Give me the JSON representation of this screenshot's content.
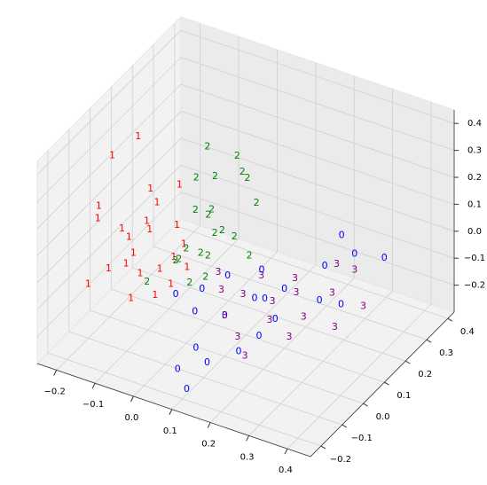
{
  "chart_data": {
    "type": "scatter",
    "series": [
      {
        "name": "0",
        "color": "#0000ff",
        "x": [
          0.1,
          0.15,
          0.05,
          0.2,
          0.25,
          0.3,
          0.35,
          0.08,
          0.12,
          0.18,
          0.03,
          0.13,
          0.22,
          0.06,
          0.1,
          0.16,
          0.28,
          0,
          0.2,
          0.32,
          0.08,
          0.25
        ],
        "y": [
          0,
          0.05,
          -0.05,
          0.1,
          0.2,
          0.25,
          0.3,
          -0.1,
          -0.12,
          -0.08,
          0.02,
          0.12,
          0.02,
          -0.15,
          -0.18,
          0.08,
          0.12,
          -0.05,
          -0.02,
          0.15,
          0.05,
          0.28
        ],
        "z": [
          -0.15,
          -0.1,
          -0.12,
          -0.08,
          -0.05,
          -0.02,
          -0.05,
          -0.2,
          -0.22,
          -0.18,
          -0.1,
          -0.06,
          -0.12,
          -0.25,
          -0.28,
          -0.12,
          -0.1,
          -0.08,
          -0.16,
          -0.12,
          -0.05,
          0
        ]
      },
      {
        "name": "1",
        "color": "#ff0000",
        "x": [
          -0.22,
          -0.18,
          -0.2,
          -0.12,
          -0.1,
          -0.23,
          -0.16,
          -0.14,
          -0.12,
          -0.2,
          -0.08,
          -0.06,
          -0.1,
          -0.18,
          -0.15,
          -0.04,
          -0.09,
          -0.13,
          -0.2,
          -0.05,
          -0.11,
          -0.17,
          -0.02,
          -0.07
        ],
        "y": [
          0.05,
          0.1,
          -0.05,
          0.08,
          0.15,
          0,
          0.02,
          -0.03,
          0,
          0.06,
          0.02,
          0.05,
          -0.08,
          -0.04,
          0.1,
          0,
          0.12,
          0.05,
          -0.1,
          0.08,
          -0.05,
          0.14,
          0.04,
          -0.02
        ],
        "z": [
          0.25,
          0.3,
          0.15,
          0.1,
          0.12,
          0.05,
          0,
          -0.05,
          -0.1,
          -0.02,
          -0.08,
          -0.05,
          -0.12,
          -0.08,
          -0.03,
          -0.1,
          0,
          0.05,
          -0.1,
          -0.02,
          0.02,
          0.08,
          -0.06,
          -0.14
        ]
      },
      {
        "name": "2",
        "color": "#008000",
        "x": [
          0,
          0.05,
          0.02,
          0.08,
          0.03,
          -0.02,
          0.06,
          0,
          0.04,
          0.01,
          -0.03,
          0.07,
          0.02,
          -0.05,
          0.05,
          0.1,
          -0.04,
          0.03,
          0.12,
          -0.08,
          0,
          0.06
        ],
        "y": [
          0.1,
          0.15,
          0.1,
          0.12,
          0.05,
          0.08,
          0.06,
          0,
          0.03,
          0.05,
          0.02,
          0.1,
          -0.02,
          0.04,
          0,
          0.15,
          0.12,
          0.08,
          0.08,
          -0.04,
          0.12,
          0.18
        ],
        "z": [
          0.35,
          0.3,
          0.25,
          0.28,
          0.15,
          0.12,
          0.1,
          0.05,
          0.02,
          0,
          -0.02,
          0.05,
          -0.05,
          -0.05,
          -0.03,
          0.15,
          0.2,
          0.06,
          0.02,
          -0.08,
          0.1,
          0.2
        ]
      },
      {
        "name": "3",
        "color": "#800080",
        "x": [
          0.12,
          0.18,
          0.22,
          0.28,
          0.35,
          0.1,
          0.15,
          0.2,
          0.25,
          0.3,
          0.08,
          0.14,
          0.24,
          0.18,
          0.32,
          0.05,
          0.27,
          0.2
        ],
        "y": [
          0.05,
          0.08,
          0.12,
          0.18,
          0.2,
          0,
          -0.03,
          0.03,
          0.1,
          0.25,
          0.02,
          0.1,
          0.05,
          -0.05,
          0.12,
          0.06,
          0.22,
          0.15
        ],
        "z": [
          -0.1,
          -0.12,
          -0.1,
          -0.12,
          -0.15,
          -0.15,
          -0.18,
          -0.14,
          -0.16,
          -0.08,
          -0.08,
          -0.06,
          -0.2,
          -0.22,
          -0.18,
          -0.06,
          -0.05,
          -0.08
        ]
      }
    ],
    "xlim": [
      -0.25,
      0.46
    ],
    "ylim": [
      -0.25,
      0.43
    ],
    "zlim": [
      -0.3,
      0.45
    ],
    "xticks": [
      {
        "value": -0.2,
        "label": "−0.2"
      },
      {
        "value": -0.1,
        "label": "−0.1"
      },
      {
        "value": 0,
        "label": "0.0"
      },
      0.1,
      0.2,
      0.3,
      0.4
    ],
    "yticks": [
      {
        "value": -0.2,
        "label": "−0.2"
      },
      {
        "value": -0.1,
        "label": "−0.1"
      },
      {
        "value": 0,
        "label": "0.0"
      },
      0.1,
      0.2,
      0.3,
      0.4
    ],
    "zticks": [
      {
        "value": -0.2,
        "label": "−0.2"
      },
      {
        "value": -0.1,
        "label": "−0.1"
      },
      {
        "value": 0,
        "label": "0.0"
      },
      0.1,
      0.2,
      0.3,
      0.4
    ],
    "grid": true
  }
}
